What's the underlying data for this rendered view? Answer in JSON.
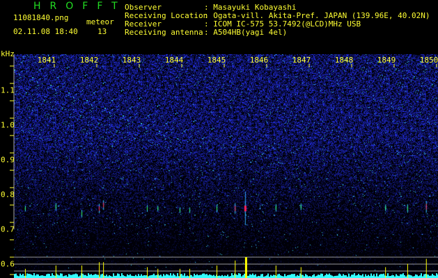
{
  "header": {
    "app_title": "HROFFT",
    "filename": "11081840.png",
    "datetime": "02.11.08 18:40",
    "meteor_label": "meteor",
    "meteor_count": "13",
    "info": [
      {
        "label": "Observer",
        "value": ": Masayuki Kobayashi"
      },
      {
        "label": "Receiving Location",
        "value": ": Ogata-vill. Akita-Pref. JAPAN (139.96E, 40.02N)"
      },
      {
        "label": "Receiver",
        "value": ": ICOM IC-575 53.7492(@LCD)MHz USB"
      },
      {
        "label": "Receiving antenna",
        "value": ": A504HB(yagi 4el)"
      }
    ]
  },
  "chart_data": {
    "type": "heatmap",
    "ylabel": "kHz",
    "x_ticks": [
      "1841",
      "1842",
      "1843",
      "1844",
      "1845",
      "1846",
      "1847",
      "1848",
      "1849",
      "1850"
    ],
    "y_ticks": [
      "1.1",
      "1.0",
      "0.9",
      "0.8",
      "0.7",
      "0.6"
    ],
    "ylim": [
      0.56,
      1.2
    ],
    "xlim": [
      1840.1,
      1850.0
    ],
    "colors": {
      "background": "#000010",
      "noise": "#2233ff",
      "weak": "#33ccff",
      "strong": "#ff2244",
      "histogram": "#33ffff",
      "echo_bar": "#ffff00"
    },
    "echoes": [
      {
        "time": 1840.31,
        "freq": 0.76,
        "strength": 0.3
      },
      {
        "time": 1841.03,
        "freq": 0.765,
        "strength": 0.5
      },
      {
        "time": 1841.64,
        "freq": 0.745,
        "strength": 0.5
      },
      {
        "time": 1842.05,
        "freq": 0.76,
        "strength": 0.7
      },
      {
        "time": 1842.15,
        "freq": 0.77,
        "strength": 0.7
      },
      {
        "time": 1843.18,
        "freq": 0.76,
        "strength": 0.4
      },
      {
        "time": 1843.43,
        "freq": 0.76,
        "strength": 0.3
      },
      {
        "time": 1843.95,
        "freq": 0.755,
        "strength": 0.3
      },
      {
        "time": 1844.18,
        "freq": 0.755,
        "strength": 0.3
      },
      {
        "time": 1844.82,
        "freq": 0.76,
        "strength": 0.5
      },
      {
        "time": 1845.25,
        "freq": 0.76,
        "strength": 0.8
      },
      {
        "time": 1845.49,
        "freq": 0.76,
        "strength": 1.0
      },
      {
        "time": 1846.21,
        "freq": 0.762,
        "strength": 0.5
      },
      {
        "time": 1846.8,
        "freq": 0.765,
        "strength": 0.4
      },
      {
        "time": 1848.79,
        "freq": 0.762,
        "strength": 0.4
      },
      {
        "time": 1849.31,
        "freq": 0.76,
        "strength": 0.6
      },
      {
        "time": 1849.75,
        "freq": 0.765,
        "strength": 0.9
      }
    ]
  }
}
